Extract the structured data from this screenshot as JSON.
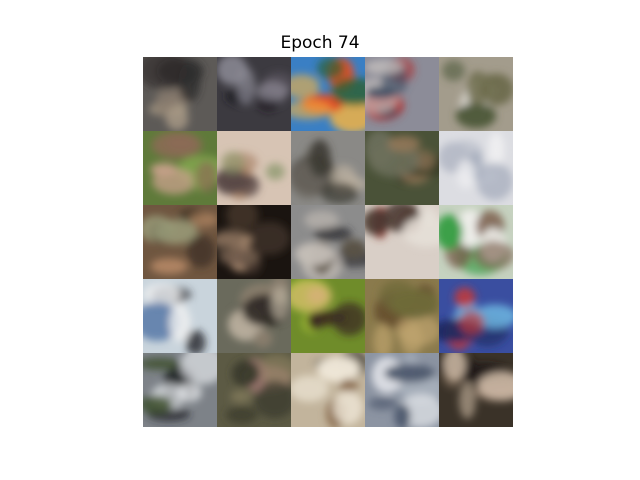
{
  "figure": {
    "title": "Epoch 74"
  },
  "samples": [
    {
      "bg": "#5d5a57",
      "c1": "#8a7c6e",
      "c2": "#2e2a2a",
      "c3": "#a89a86"
    },
    {
      "bg": "#3c3a40",
      "c1": "#1d1c22",
      "c2": "#8c8a95",
      "c3": "#54505a"
    },
    {
      "bg": "#3a7fc4",
      "c1": "#e24c25",
      "c2": "#f0b245",
      "c3": "#2a5f2e"
    },
    {
      "bg": "#8c8c98",
      "c1": "#b03030",
      "c2": "#3f4f64",
      "c3": "#c8c2c0"
    },
    {
      "bg": "#a39c8c",
      "c1": "#d8d4cc",
      "c2": "#6b6a4a",
      "c3": "#4f5a3b"
    },
    {
      "bg": "#5f7a3a",
      "c1": "#7fa44c",
      "c2": "#8c6a55",
      "c3": "#c5a089"
    },
    {
      "bg": "#d7c4b4",
      "c1": "#a67f64",
      "c2": "#5a4a48",
      "c3": "#8e9a6e"
    },
    {
      "bg": "#8a8986",
      "c1": "#6e6a62",
      "c2": "#3c3a32",
      "c3": "#c3b7a5"
    },
    {
      "bg": "#4a5238",
      "c1": "#2c3322",
      "c2": "#9a7a5a",
      "c3": "#6d705c"
    },
    {
      "bg": "#dcdde2",
      "c1": "#b8bcc8",
      "c2": "#eeeef0",
      "c3": "#9aa2b4"
    },
    {
      "bg": "#6f5640",
      "c1": "#b88a66",
      "c2": "#3e3225",
      "c3": "#9ca07c"
    },
    {
      "bg": "#1a1410",
      "c1": "#cfa98a",
      "c2": "#4a3a30",
      "c3": "#6e5a4a"
    },
    {
      "bg": "#8c8c8c",
      "c1": "#2c2c30",
      "c2": "#c6bfb8",
      "c3": "#5a5246"
    },
    {
      "bg": "#d9cfc7",
      "c1": "#8a3a2e",
      "c2": "#4a3a32",
      "c3": "#e6e0d8"
    },
    {
      "bg": "#c6d2c0",
      "c1": "#3aa048",
      "c2": "#7a5a4a",
      "c3": "#eeeeea"
    },
    {
      "bg": "#c9d4dc",
      "c1": "#1e1f26",
      "c2": "#f2f2f2",
      "c3": "#4a6fa0"
    },
    {
      "bg": "#6a6a5c",
      "c1": "#2a2420",
      "c2": "#8a7e6e",
      "c3": "#b8ae9c"
    },
    {
      "bg": "#6f8c2a",
      "c1": "#a7c235",
      "c2": "#3a2a20",
      "c3": "#d8b07a"
    },
    {
      "bg": "#8a7a4c",
      "c1": "#5a4026",
      "c2": "#c4a870",
      "c3": "#6e6a3a"
    },
    {
      "bg": "#3a4ea0",
      "c1": "#6fb8e2",
      "c2": "#c23a3a",
      "c3": "#1f2a60"
    },
    {
      "bg": "#7d8288",
      "c1": "#202226",
      "c2": "#e9ecef",
      "c3": "#3a4e2a"
    },
    {
      "bg": "#5c5a44",
      "c1": "#8a8060",
      "c2": "#3a3a2c",
      "c3": "#a07a72"
    },
    {
      "bg": "#c2b49c",
      "c1": "#2a2622",
      "c2": "#f0e8d8",
      "c3": "#8c6e50"
    },
    {
      "bg": "#8c94a2",
      "c1": "#e8eaee",
      "c2": "#4e5a6e",
      "c3": "#a6aeba"
    },
    {
      "bg": "#3a3228",
      "c1": "#8a7460",
      "c2": "#c8b4a0",
      "c3": "#1e1a16"
    }
  ]
}
